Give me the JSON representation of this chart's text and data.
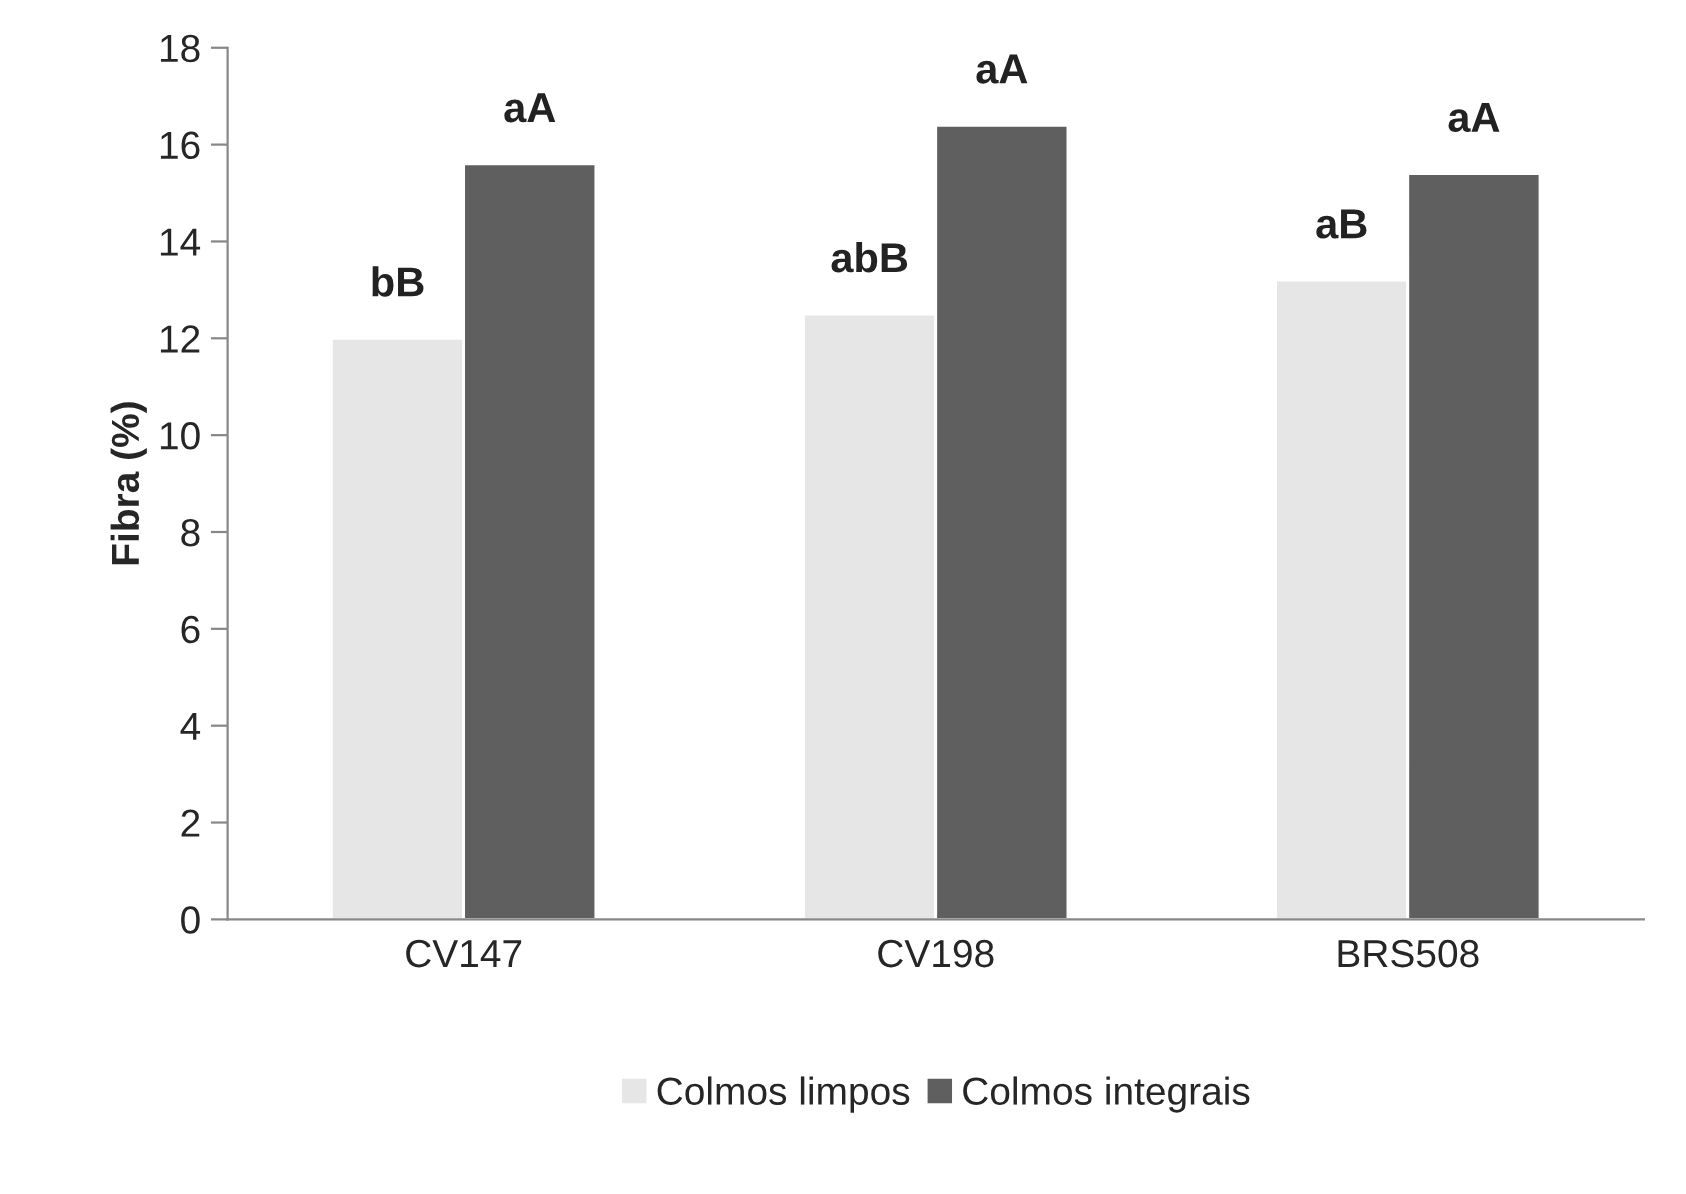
{
  "chart_data": {
    "type": "bar",
    "ylabel": "Fibra (%)",
    "categories": [
      "CV147",
      "CV198",
      "BRS508"
    ],
    "series": [
      {
        "name": "Colmos limpos",
        "color": "#e6e6e6",
        "values": [
          12.0,
          12.5,
          13.2
        ],
        "value_labels": [
          "bB",
          "abB",
          "aB"
        ]
      },
      {
        "name": "Colmos integrais",
        "color": "#5f5f5f",
        "values": [
          15.6,
          16.4,
          15.4
        ],
        "value_labels": [
          "aA",
          "aA",
          "aA"
        ]
      }
    ],
    "ylim": [
      0,
      18
    ],
    "yticks": [
      0,
      2,
      4,
      6,
      8,
      10,
      12,
      14,
      16,
      18
    ],
    "grid": false,
    "legend": "bottom"
  }
}
